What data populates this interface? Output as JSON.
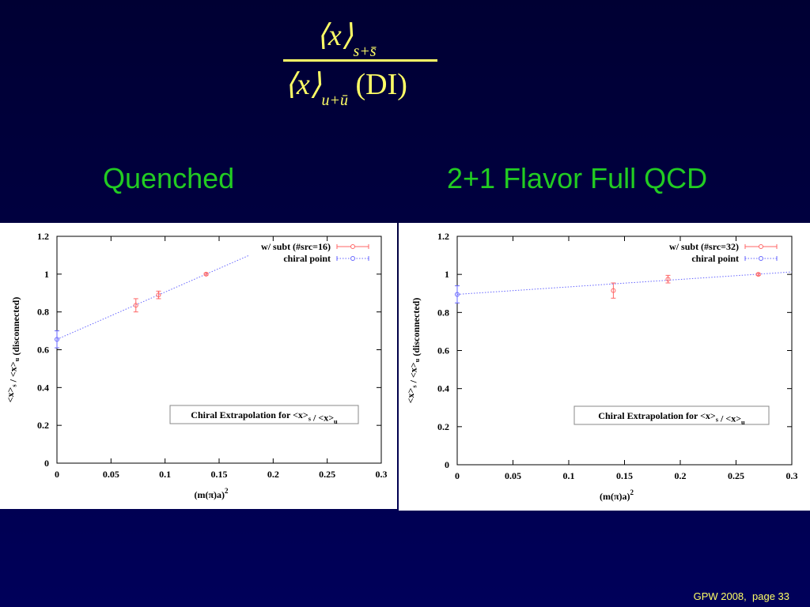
{
  "slide": {
    "formula": {
      "numerator": "⟨x⟩",
      "numerator_sub": "s+s̄",
      "denominator": "⟨x⟩",
      "denominator_sub": "u+ū",
      "denominator_suffix": "(DI)"
    },
    "left_heading": "Quenched",
    "right_heading": "2+1 Flavor Full QCD",
    "footer": "GPW 2008,  page 33"
  },
  "colors": {
    "heading": "#22cc22",
    "formula": "#ffff66",
    "background": "#000040",
    "series_data": "#ff6666",
    "series_chiral": "#6666ff"
  },
  "chart_data": [
    {
      "type": "scatter",
      "xlabel": "(m(π)a)",
      "xlabel_sup": "2",
      "ylabel": "<x>s / <x>u (disconnected)",
      "xlim": [
        0,
        0.3
      ],
      "ylim": [
        0,
        1.2
      ],
      "xticks": [
        "0",
        "0.05",
        "0.1",
        "0.15",
        "0.2",
        "0.25",
        "0.3"
      ],
      "yticks": [
        "0",
        "0.2",
        "0.4",
        "0.6",
        "0.8",
        "1",
        "1.2"
      ],
      "annotation": "Chiral Extrapolation for <x>s / <x>u",
      "legend_position": "top-right",
      "series": [
        {
          "name": "w/ subt (#src=16)",
          "color": "#ff6666",
          "marker": "circle-errorbar",
          "points": [
            {
              "x": 0.073,
              "y": 0.835,
              "err": 0.035
            },
            {
              "x": 0.094,
              "y": 0.89,
              "err": 0.02
            },
            {
              "x": 0.138,
              "y": 1.0,
              "err": 0.005
            }
          ]
        },
        {
          "name": "chiral point",
          "color": "#6666ff",
          "marker": "circle-errorbar",
          "points": [
            {
              "x": 0.0,
              "y": 0.655,
              "err": 0.045
            }
          ]
        }
      ],
      "fit_line": {
        "color": "#6666ff",
        "from": [
          0.0,
          0.655
        ],
        "to": [
          0.178,
          1.1
        ]
      }
    },
    {
      "type": "scatter",
      "xlabel": "(m(π)a)",
      "xlabel_sup": "2",
      "ylabel": "<x>s / <x>u (disconnected)",
      "xlim": [
        0,
        0.3
      ],
      "ylim": [
        0,
        1.2
      ],
      "xticks": [
        "0",
        "0.05",
        "0.1",
        "0.15",
        "0.2",
        "0.25",
        "0.3"
      ],
      "yticks": [
        "0",
        "0.2",
        "0.4",
        "0.6",
        "0.8",
        "1",
        "1.2"
      ],
      "annotation": "Chiral Extrapolation for <x>s / <x>u",
      "legend_position": "top-right",
      "series": [
        {
          "name": "w/ subt (#src=32)",
          "color": "#ff6666",
          "marker": "circle-errorbar",
          "points": [
            {
              "x": 0.14,
              "y": 0.915,
              "err": 0.04
            },
            {
              "x": 0.189,
              "y": 0.975,
              "err": 0.02
            },
            {
              "x": 0.27,
              "y": 1.0,
              "err": 0.005
            }
          ]
        },
        {
          "name": "chiral point",
          "color": "#6666ff",
          "marker": "circle-errorbar",
          "points": [
            {
              "x": 0.0,
              "y": 0.895,
              "err": 0.045
            }
          ]
        }
      ],
      "fit_line": {
        "color": "#6666ff",
        "from": [
          0.0,
          0.895
        ],
        "to": [
          0.3,
          1.013
        ]
      }
    }
  ]
}
